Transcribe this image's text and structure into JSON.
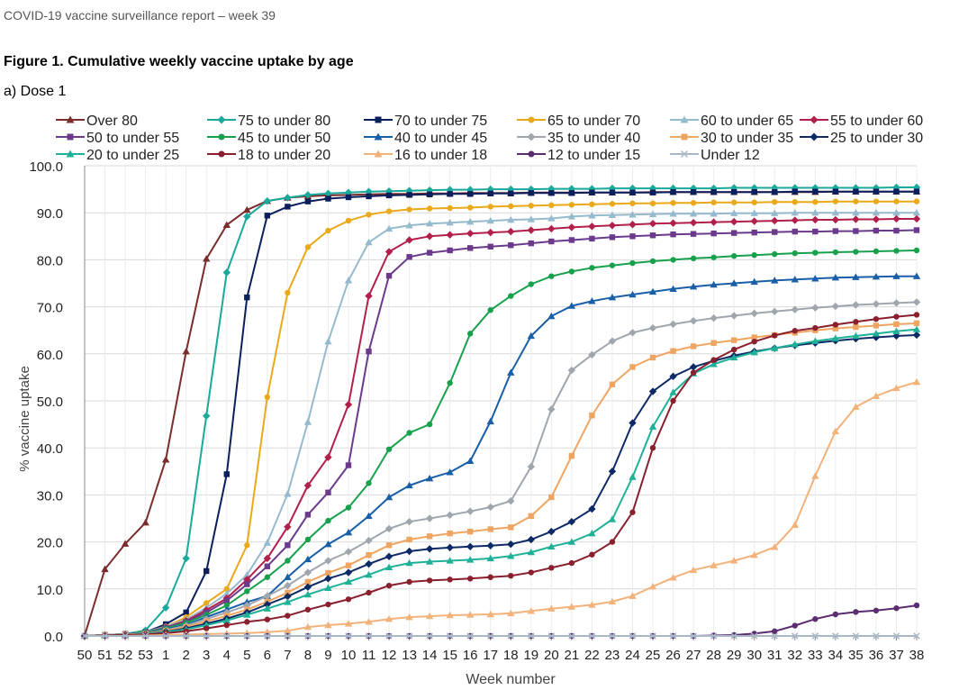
{
  "header": {
    "report_title": "COVID-19 vaccine surveillance report – week 39"
  },
  "figure": {
    "title": "Figure 1. Cumulative weekly vaccine uptake by age",
    "panel": "a) Dose 1"
  },
  "chart_data": {
    "type": "line",
    "xlabel": "Week number",
    "ylabel": "% vaccine uptake",
    "ylim": [
      0,
      100
    ],
    "ytick_labels": [
      "0.0",
      "10.0",
      "20.0",
      "30.0",
      "40.0",
      "50.0",
      "60.0",
      "70.0",
      "80.0",
      "90.0",
      "100.0"
    ],
    "categories": [
      "50",
      "51",
      "52",
      "53",
      "1",
      "2",
      "3",
      "4",
      "5",
      "6",
      "7",
      "8",
      "9",
      "10",
      "11",
      "12",
      "13",
      "14",
      "15",
      "16",
      "17",
      "18",
      "19",
      "20",
      "21",
      "22",
      "23",
      "24",
      "25",
      "26",
      "27",
      "28",
      "29",
      "30",
      "31",
      "32",
      "33",
      "34",
      "35",
      "36",
      "37",
      "38"
    ],
    "grid": true,
    "legend_position": "top",
    "series": [
      {
        "name": "Over 80",
        "color": "#7B2C2C",
        "marker": "triangle",
        "values": [
          0.1,
          14.2,
          19.6,
          24.1,
          37.5,
          60.5,
          80.2,
          87.4,
          90.6,
          92.5,
          93.2,
          93.5,
          93.7,
          93.8,
          93.9,
          94.0,
          94.0,
          94.1,
          94.1,
          94.2,
          94.2,
          94.2,
          94.3,
          94.3,
          94.3,
          94.3,
          94.3,
          94.3,
          94.4,
          94.4,
          94.4,
          94.4,
          94.4,
          94.4,
          94.4,
          94.4,
          94.4,
          94.5,
          94.5,
          94.5,
          94.5,
          94.5
        ]
      },
      {
        "name": "75 to under 80",
        "color": "#1AA99B",
        "marker": "diamond",
        "values": [
          0.0,
          0.2,
          0.4,
          1.2,
          6.0,
          16.5,
          46.8,
          77.3,
          89.2,
          92.5,
          93.2,
          93.8,
          94.1,
          94.3,
          94.5,
          94.6,
          94.7,
          94.8,
          94.9,
          94.9,
          95.0,
          95.0,
          95.0,
          95.1,
          95.1,
          95.1,
          95.2,
          95.2,
          95.2,
          95.2,
          95.2,
          95.2,
          95.3,
          95.3,
          95.3,
          95.3,
          95.3,
          95.3,
          95.3,
          95.3,
          95.4,
          95.4
        ]
      },
      {
        "name": "70 to under 75",
        "color": "#0B1F5C",
        "marker": "square",
        "values": [
          0.0,
          0.2,
          0.4,
          0.8,
          2.5,
          5.0,
          13.8,
          34.4,
          72.0,
          89.4,
          91.3,
          92.4,
          93.0,
          93.3,
          93.5,
          93.7,
          93.8,
          93.9,
          94.0,
          94.0,
          94.1,
          94.1,
          94.2,
          94.2,
          94.2,
          94.3,
          94.3,
          94.3,
          94.3,
          94.4,
          94.4,
          94.4,
          94.4,
          94.4,
          94.4,
          94.5,
          94.5,
          94.5,
          94.5,
          94.5,
          94.5,
          94.5
        ]
      },
      {
        "name": "65 to under 70",
        "color": "#EAA91A",
        "marker": "circle",
        "values": [
          0.0,
          0.2,
          0.4,
          0.8,
          2.0,
          4.0,
          7.0,
          10.0,
          19.3,
          50.8,
          73.0,
          82.7,
          86.2,
          88.3,
          89.6,
          90.3,
          90.7,
          90.9,
          91.0,
          91.1,
          91.3,
          91.4,
          91.5,
          91.6,
          91.7,
          91.8,
          91.9,
          92.0,
          92.0,
          92.1,
          92.1,
          92.2,
          92.2,
          92.2,
          92.3,
          92.3,
          92.3,
          92.4,
          92.4,
          92.4,
          92.4,
          92.4
        ]
      },
      {
        "name": "60 to under 65",
        "color": "#96BACD",
        "marker": "triangle",
        "values": [
          0.0,
          0.2,
          0.4,
          0.8,
          2.0,
          3.5,
          6.0,
          9.0,
          13.0,
          19.8,
          30.2,
          45.5,
          62.6,
          75.6,
          83.7,
          86.6,
          87.3,
          87.7,
          87.9,
          88.1,
          88.3,
          88.5,
          88.6,
          88.8,
          89.2,
          89.4,
          89.5,
          89.6,
          89.7,
          89.8,
          89.8,
          89.8,
          89.9,
          89.9,
          89.9,
          90.0,
          90.0,
          90.0,
          90.0,
          90.0,
          90.0,
          90.0
        ]
      },
      {
        "name": "55 to under 60",
        "color": "#B21F4A",
        "marker": "diamond",
        "values": [
          0.0,
          0.2,
          0.4,
          0.7,
          1.8,
          3.2,
          5.5,
          8.0,
          12.0,
          16.5,
          23.2,
          32.0,
          38.0,
          49.2,
          72.3,
          81.7,
          84.2,
          85.0,
          85.3,
          85.6,
          85.8,
          86.0,
          86.3,
          86.6,
          86.9,
          87.1,
          87.3,
          87.5,
          87.7,
          87.8,
          87.9,
          88.0,
          88.1,
          88.2,
          88.3,
          88.4,
          88.5,
          88.5,
          88.6,
          88.6,
          88.7,
          88.7
        ]
      },
      {
        "name": "50 to under 55",
        "color": "#6B3A8C",
        "marker": "square",
        "values": [
          0.0,
          0.2,
          0.4,
          0.7,
          1.7,
          3.0,
          5.0,
          7.5,
          11.0,
          14.8,
          19.3,
          25.8,
          30.5,
          36.3,
          60.5,
          76.6,
          80.6,
          81.5,
          82.0,
          82.5,
          82.8,
          83.1,
          83.5,
          83.9,
          84.2,
          84.5,
          84.8,
          85.0,
          85.2,
          85.4,
          85.5,
          85.6,
          85.7,
          85.8,
          85.9,
          86.0,
          86.0,
          86.1,
          86.1,
          86.2,
          86.2,
          86.3
        ]
      },
      {
        "name": "45 to under 50",
        "color": "#18A14C",
        "marker": "circle",
        "values": [
          0.0,
          0.2,
          0.4,
          0.7,
          1.6,
          2.8,
          4.5,
          6.5,
          9.5,
          12.5,
          16.0,
          20.5,
          24.5,
          27.3,
          32.5,
          39.7,
          43.2,
          45.0,
          53.8,
          64.3,
          69.3,
          72.3,
          74.8,
          76.5,
          77.5,
          78.3,
          78.8,
          79.3,
          79.7,
          80.0,
          80.3,
          80.5,
          80.8,
          81.0,
          81.2,
          81.4,
          81.5,
          81.6,
          81.7,
          81.8,
          81.9,
          82.0
        ]
      },
      {
        "name": "40 to under 45",
        "color": "#195FA8",
        "marker": "triangle",
        "values": [
          0.0,
          0.2,
          0.4,
          0.6,
          1.4,
          2.4,
          4.0,
          5.6,
          7.2,
          8.5,
          12.5,
          16.3,
          19.5,
          22.0,
          25.5,
          29.5,
          32.0,
          33.5,
          34.8,
          37.2,
          45.6,
          56.0,
          63.8,
          68.0,
          70.2,
          71.2,
          72.0,
          72.6,
          73.2,
          73.8,
          74.3,
          74.7,
          75.0,
          75.3,
          75.6,
          75.8,
          76.0,
          76.2,
          76.3,
          76.4,
          76.5,
          76.5
        ]
      },
      {
        "name": "35 to under 40",
        "color": "#A0A6AE",
        "marker": "diamond",
        "values": [
          0.0,
          0.2,
          0.3,
          0.5,
          1.2,
          2.2,
          3.6,
          5.0,
          6.5,
          8.5,
          10.7,
          13.5,
          16.0,
          17.9,
          20.3,
          22.8,
          24.3,
          25.0,
          25.7,
          26.5,
          27.4,
          28.7,
          36.0,
          48.2,
          56.5,
          59.8,
          62.7,
          64.5,
          65.5,
          66.3,
          67.0,
          67.6,
          68.1,
          68.6,
          69.0,
          69.4,
          69.8,
          70.1,
          70.4,
          70.6,
          70.8,
          71.0
        ]
      },
      {
        "name": "30 to under 35",
        "color": "#EFA562",
        "marker": "square",
        "values": [
          0.0,
          0.2,
          0.3,
          0.5,
          1.1,
          1.9,
          3.1,
          4.3,
          5.6,
          7.3,
          9.2,
          11.5,
          13.4,
          15.0,
          17.2,
          19.3,
          20.5,
          21.2,
          21.8,
          22.2,
          22.7,
          23.1,
          25.5,
          29.5,
          38.3,
          46.9,
          53.5,
          57.2,
          59.2,
          60.6,
          61.6,
          62.3,
          62.9,
          63.5,
          64.0,
          64.5,
          65.0,
          65.4,
          65.7,
          66.0,
          66.3,
          66.5
        ]
      },
      {
        "name": "25 to under 30",
        "color": "#0D2A66",
        "marker": "diamond",
        "values": [
          0.0,
          0.1,
          0.2,
          0.4,
          0.9,
          1.6,
          2.6,
          3.7,
          5.0,
          6.7,
          8.4,
          10.4,
          12.2,
          13.5,
          15.3,
          16.9,
          18.0,
          18.5,
          18.8,
          19.0,
          19.2,
          19.5,
          20.5,
          22.2,
          24.3,
          27.0,
          35.0,
          45.3,
          52.0,
          55.2,
          57.2,
          58.5,
          59.6,
          60.5,
          61.2,
          61.8,
          62.3,
          62.8,
          63.2,
          63.5,
          63.8,
          64.0
        ]
      },
      {
        "name": "20 to under 25",
        "color": "#1FB198",
        "marker": "triangle",
        "values": [
          0.0,
          0.1,
          0.2,
          0.4,
          0.8,
          1.4,
          2.3,
          3.3,
          4.5,
          5.8,
          7.2,
          8.8,
          10.2,
          11.5,
          13.0,
          14.6,
          15.5,
          15.8,
          16.0,
          16.2,
          16.5,
          17.0,
          17.8,
          19.0,
          20.0,
          21.8,
          24.8,
          33.8,
          44.5,
          51.8,
          55.8,
          57.8,
          59.2,
          60.3,
          61.2,
          62.0,
          62.7,
          63.3,
          63.8,
          64.3,
          64.8,
          65.2
        ]
      },
      {
        "name": "18 to under 20",
        "color": "#8A1F2E",
        "marker": "circle",
        "values": [
          0.0,
          0.1,
          0.2,
          0.3,
          0.6,
          1.0,
          1.6,
          2.3,
          3.0,
          3.5,
          4.3,
          5.6,
          6.7,
          7.8,
          9.2,
          10.7,
          11.5,
          11.8,
          12.0,
          12.2,
          12.5,
          12.8,
          13.5,
          14.5,
          15.5,
          17.3,
          20.0,
          26.3,
          40.0,
          50.0,
          56.0,
          58.7,
          60.9,
          62.6,
          63.9,
          64.9,
          65.5,
          66.2,
          66.8,
          67.4,
          67.9,
          68.3
        ]
      },
      {
        "name": "16 to under 18",
        "color": "#F2B27A",
        "marker": "triangle",
        "values": [
          0.0,
          0.0,
          0.0,
          0.1,
          0.2,
          0.3,
          0.4,
          0.5,
          0.6,
          0.8,
          1.1,
          1.9,
          2.3,
          2.6,
          3.0,
          3.6,
          4.0,
          4.2,
          4.4,
          4.5,
          4.6,
          4.8,
          5.3,
          5.8,
          6.2,
          6.6,
          7.3,
          8.5,
          10.5,
          12.4,
          14.0,
          15.0,
          16.0,
          17.2,
          18.9,
          23.6,
          34.0,
          43.5,
          48.7,
          51.0,
          52.7,
          54.0
        ]
      },
      {
        "name": "12 to under 15",
        "color": "#5B2C6F",
        "marker": "circle",
        "values": [
          0,
          0,
          0,
          0,
          0,
          0,
          0,
          0,
          0,
          0,
          0,
          0,
          0,
          0,
          0,
          0,
          0,
          0,
          0,
          0,
          0,
          0,
          0,
          0,
          0,
          0,
          0,
          0,
          0,
          0,
          0,
          0.1,
          0.2,
          0.5,
          1.0,
          2.2,
          3.6,
          4.6,
          5.1,
          5.4,
          5.9,
          6.5
        ]
      },
      {
        "name": "Under 12",
        "color": "#A9B8C7",
        "marker": "x",
        "values": [
          0,
          0,
          0,
          0,
          0,
          0,
          0,
          0,
          0,
          0,
          0,
          0,
          0,
          0,
          0,
          0,
          0,
          0,
          0,
          0,
          0,
          0,
          0,
          0,
          0,
          0,
          0,
          0,
          0,
          0,
          0,
          0,
          0,
          0,
          0,
          0,
          0,
          0,
          0,
          0,
          0,
          0
        ]
      }
    ]
  }
}
